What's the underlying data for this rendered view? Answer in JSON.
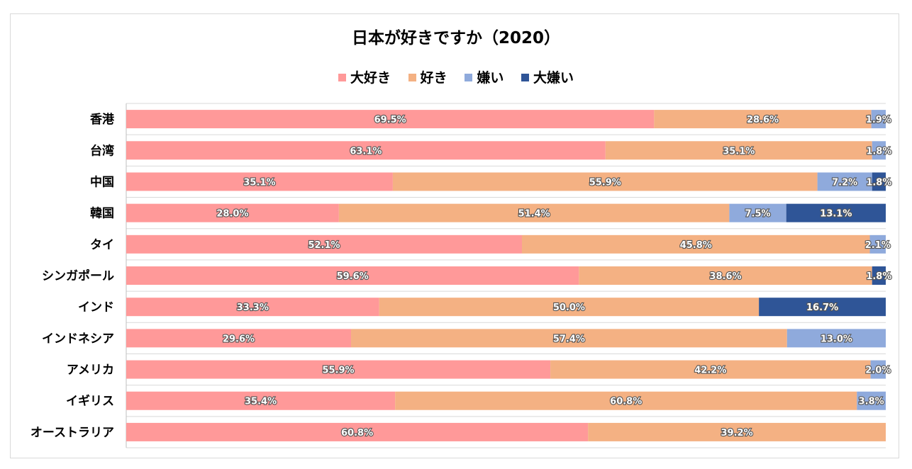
{
  "chart_data": {
    "type": "bar",
    "orientation": "horizontal",
    "stacked": "percent",
    "title": "日本が好きですか（2020）",
    "legend_position": "top",
    "categories": [
      "香港",
      "台湾",
      "中国",
      "韓国",
      "タイ",
      "シンガポール",
      "インド",
      "インドネシア",
      "アメリカ",
      "イギリス",
      "オーストラリア"
    ],
    "series": [
      {
        "name": "大好き",
        "color": "#ff9999",
        "values": [
          69.5,
          63.1,
          35.1,
          28.0,
          52.1,
          59.6,
          33.3,
          29.6,
          55.9,
          35.4,
          60.8
        ],
        "labels": [
          "69.5%",
          "63.1%",
          "35.1%",
          "28.0%",
          "52.1%",
          "59.6%",
          "33.3%",
          "29.6%",
          "55.9%",
          "35.4%",
          "60.8%"
        ]
      },
      {
        "name": "好き",
        "color": "#f4b183",
        "values": [
          28.6,
          35.1,
          55.9,
          51.4,
          45.8,
          38.6,
          50.0,
          57.4,
          42.2,
          60.8,
          39.2
        ],
        "labels": [
          "28.6%",
          "35.1%",
          "55.9%",
          "51.4%",
          "45.8%",
          "38.6%",
          "50.0%",
          "57.4%",
          "42.2%",
          "60.8%",
          "39.2%"
        ]
      },
      {
        "name": "嫌い",
        "color": "#8faadc",
        "values": [
          1.9,
          1.8,
          7.2,
          7.5,
          2.1,
          0,
          0,
          13.0,
          2.0,
          3.8,
          0
        ],
        "labels": [
          "1.9%",
          "1.8%",
          "7.2%",
          "7.5%",
          "2.1%",
          "",
          "",
          "13.0%",
          "2.0%",
          "3.8%",
          ""
        ]
      },
      {
        "name": "大嫌い",
        "color": "#2f5597",
        "values": [
          0,
          0,
          1.8,
          13.1,
          0,
          1.8,
          16.7,
          0,
          0,
          0,
          0
        ],
        "labels": [
          "",
          "",
          "1.8%",
          "13.1%",
          "",
          "1.8%",
          "16.7%",
          "",
          "",
          "",
          ""
        ]
      }
    ]
  }
}
